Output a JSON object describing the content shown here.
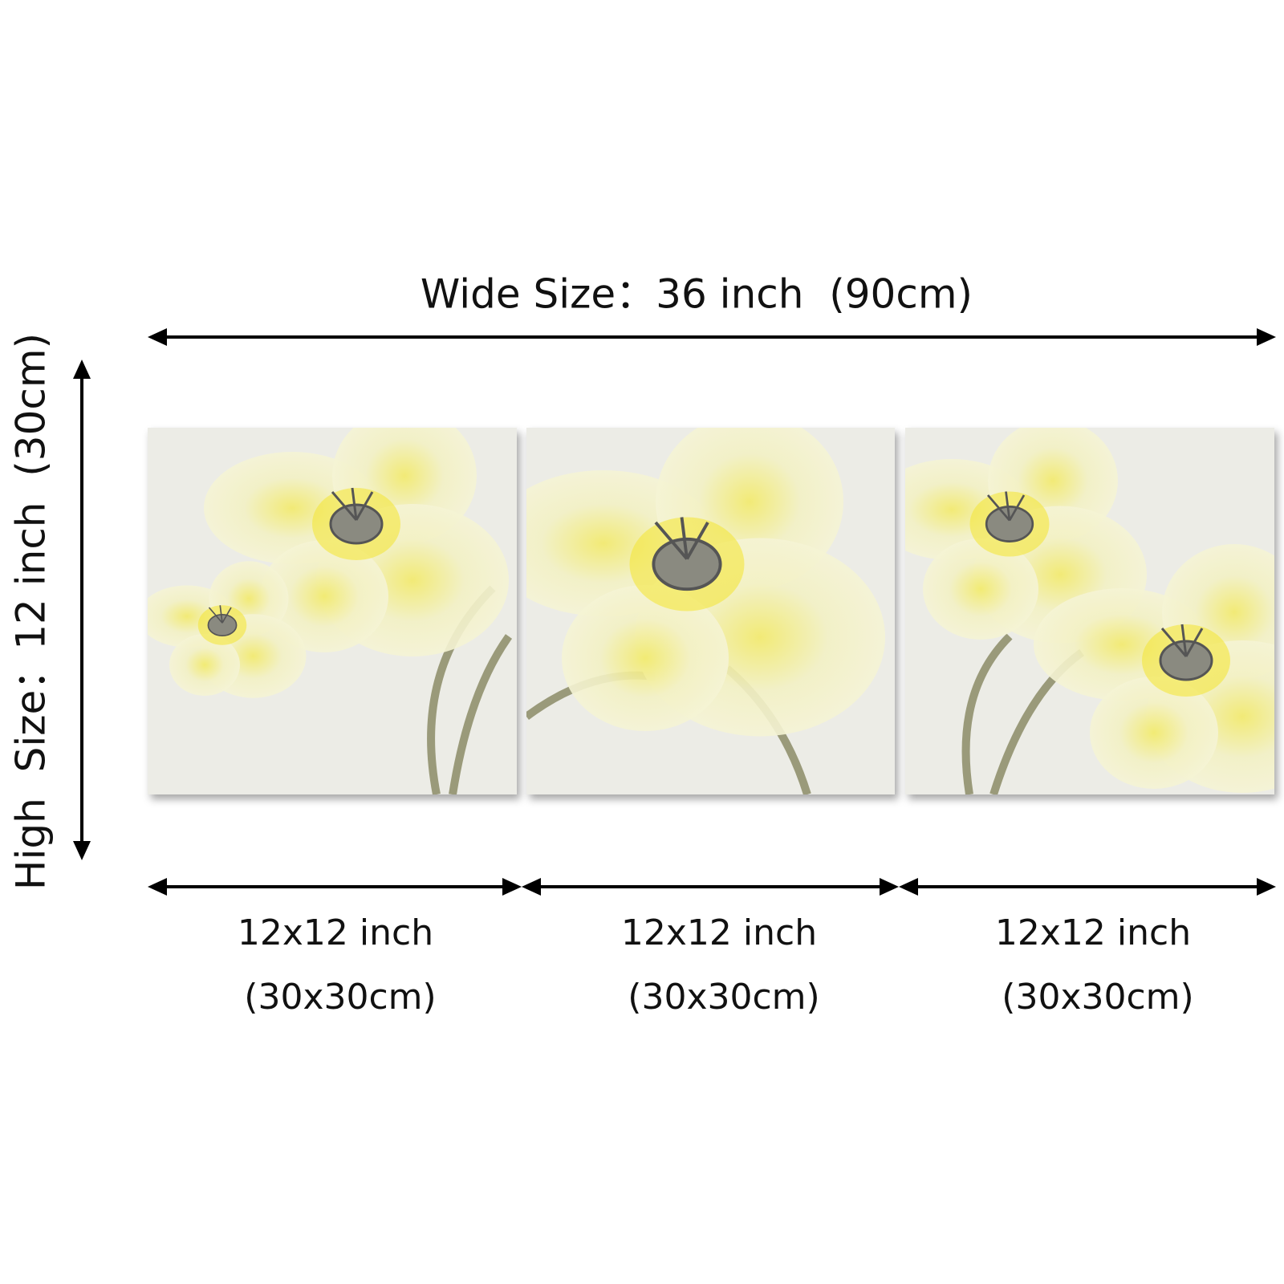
{
  "width_label": "Wide Size：36 inch  (90cm)",
  "height_label": "High  Size：12 inch  (30cm)",
  "panels": [
    {
      "size": "12x12 inch",
      "metric": "(30x30cm)"
    },
    {
      "size": "12x12 inch",
      "metric": "(30x30cm)"
    },
    {
      "size": "12x12 inch",
      "metric": "(30x30cm)"
    }
  ]
}
